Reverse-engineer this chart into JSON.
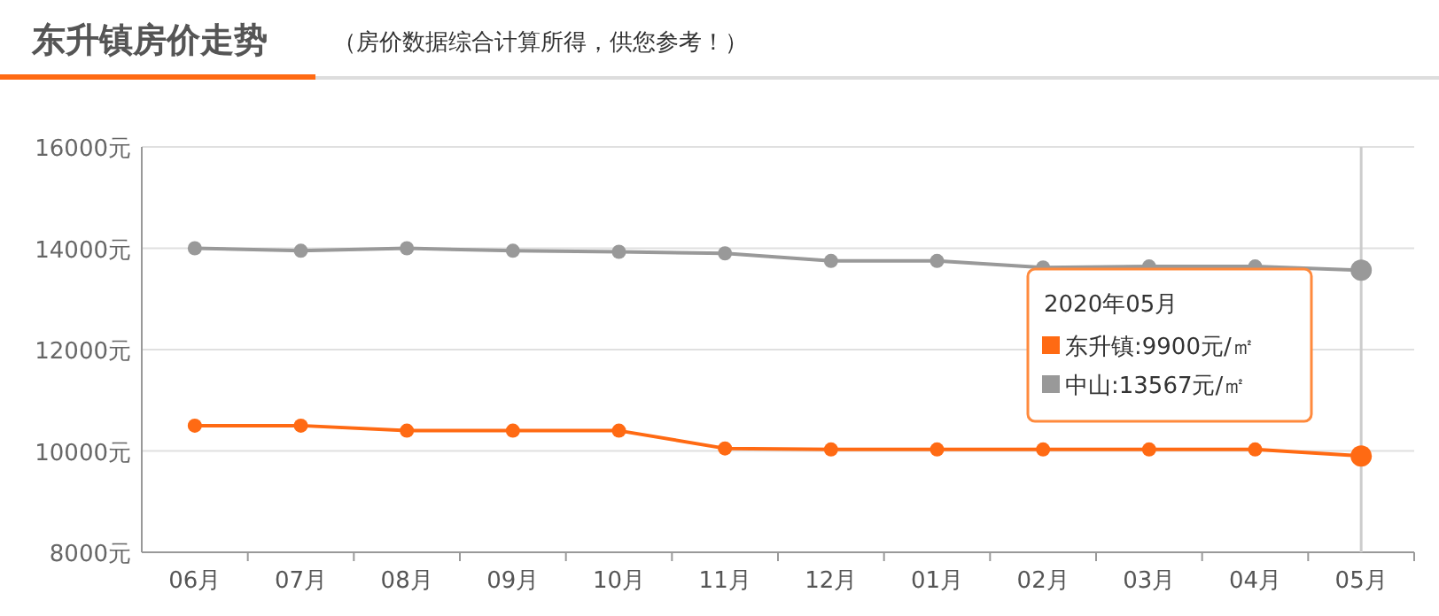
{
  "chart_data": {
    "type": "line",
    "title": "东升镇房价走势",
    "subtitle": "（房价数据综合计算所得，供您参考！）",
    "categories": [
      "06月",
      "07月",
      "08月",
      "09月",
      "10月",
      "11月",
      "12月",
      "01月",
      "02月",
      "03月",
      "04月",
      "05月"
    ],
    "ylim": [
      8000,
      16000
    ],
    "yticks": [
      {
        "value": 8000,
        "label": "8000元"
      },
      {
        "value": 10000,
        "label": "10000元"
      },
      {
        "value": 12000,
        "label": "12000元"
      },
      {
        "value": 14000,
        "label": "14000元"
      },
      {
        "value": 16000,
        "label": "16000元"
      }
    ],
    "grid": "y",
    "marker": "circle",
    "line_style": "solid",
    "series": [
      {
        "name": "东升镇",
        "color": "#ff6a13",
        "values": [
          10500,
          10500,
          10400,
          10400,
          10400,
          10050,
          10030,
          10030,
          10030,
          10030,
          10030,
          9900
        ],
        "value_labels": [
          null,
          null,
          null,
          null,
          null,
          null,
          null,
          null,
          null,
          null,
          null,
          ":9900元/㎡"
        ]
      },
      {
        "name": "中山",
        "color": "#999999",
        "values": [
          14000,
          13950,
          14000,
          13950,
          13930,
          13900,
          13750,
          13750,
          13620,
          13640,
          13640,
          13567
        ],
        "value_labels": [
          null,
          null,
          null,
          null,
          null,
          null,
          null,
          null,
          null,
          null,
          null,
          ":13567元/㎡"
        ]
      }
    ],
    "ref_lines": [
      {
        "axis": "x",
        "value": "05月",
        "color": "#cccccc"
      }
    ],
    "annotations": [
      "2020年05月"
    ]
  }
}
